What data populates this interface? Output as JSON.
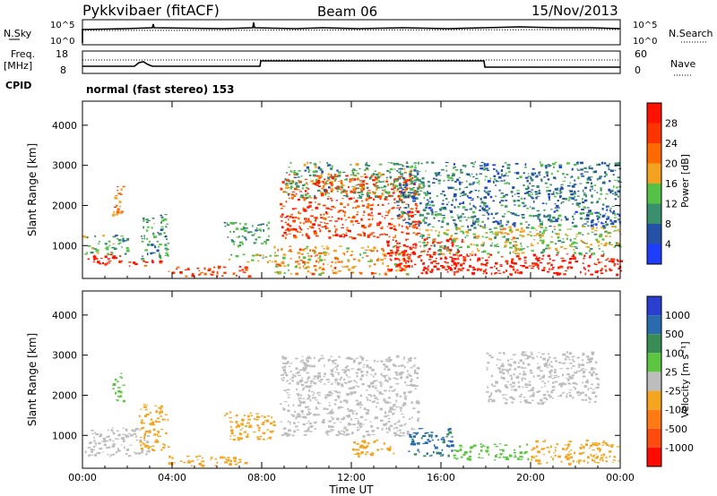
{
  "header": {
    "station": "Pykkvibaer (fitACF)",
    "beam": "Beam 06",
    "date": "15/Nov/2013"
  },
  "params": {
    "nsky_label": "N.Sky",
    "nsky_top": "10^5",
    "nsky_bottom": "10^0",
    "nsearch_label": "N.Search",
    "freq_label_1": "Freq.",
    "freq_label_2": "[MHz]",
    "freq_top": "18",
    "freq_bottom": "8",
    "nave_label": "Nave",
    "nave_top": "60",
    "nave_bottom": "0",
    "cpid_label": "CPID",
    "cpid_value": "normal (fast stereo) 153"
  },
  "axes": {
    "ylabel": "Slant Range [km]",
    "xlabel": "Time UT",
    "yticks": [
      "1000",
      "2000",
      "3000",
      "4000"
    ],
    "xticks": [
      "00:00",
      "04:00",
      "08:00",
      "12:00",
      "16:00",
      "20:00",
      "00:00"
    ]
  },
  "colorbars": {
    "power": {
      "label": "Power [dB]",
      "ticks": [
        "4",
        "8",
        "12",
        "16",
        "20",
        "24",
        "28"
      ],
      "colors": [
        "#1f3dff",
        "#2352a6",
        "#3a8f6c",
        "#55c247",
        "#f2a21e",
        "#ff6a00",
        "#ff3300",
        "#ff1100"
      ]
    },
    "velocity": {
      "label": "Velocity [m s⁻¹]",
      "ticks": [
        "1000",
        "500",
        "100",
        "25",
        "-25",
        "-100",
        "-500",
        "-1000"
      ],
      "colors": [
        "#2a3fd0",
        "#2a6bb0",
        "#3a8c55",
        "#5cc642",
        "#bdbdbd",
        "#f4a41d",
        "#ff7a12",
        "#ff4a10",
        "#ff0a00"
      ]
    }
  },
  "chart_data": [
    {
      "type": "heatmap",
      "title": "",
      "variable": "Power",
      "xlabel": "Time UT",
      "ylabel": "Slant Range [km]",
      "xlim": [
        0,
        24
      ],
      "ylim": [
        180,
        4600
      ],
      "clim": [
        0,
        30
      ],
      "units": "dB",
      "regions": [
        {
          "t0": 0.0,
          "t1": 2.0,
          "r0": 550,
          "r1": 800,
          "value": 28
        },
        {
          "t0": 0.0,
          "t1": 2.0,
          "r0": 800,
          "r1": 1300,
          "value": 12
        },
        {
          "t0": 1.3,
          "t1": 1.8,
          "r0": 1700,
          "r1": 2600,
          "value": 20
        },
        {
          "t0": 2.0,
          "t1": 3.8,
          "r0": 500,
          "r1": 650,
          "value": 26
        },
        {
          "t0": 2.6,
          "t1": 3.8,
          "r0": 650,
          "r1": 1800,
          "value": 10
        },
        {
          "t0": 3.8,
          "t1": 7.5,
          "r0": 250,
          "r1": 500,
          "value": 24
        },
        {
          "t0": 6.5,
          "t1": 8.5,
          "r0": 600,
          "r1": 800,
          "value": 14
        },
        {
          "t0": 6.3,
          "t1": 8.3,
          "r0": 1000,
          "r1": 1600,
          "value": 10
        },
        {
          "t0": 8.8,
          "t1": 15.0,
          "r0": 1200,
          "r1": 2800,
          "value": 24
        },
        {
          "t0": 9.0,
          "t1": 15.0,
          "r0": 2200,
          "r1": 3100,
          "value": 12
        },
        {
          "t0": 8.5,
          "t1": 14.5,
          "r0": 300,
          "r1": 1000,
          "value": 18
        },
        {
          "t0": 13.5,
          "t1": 17.0,
          "r0": 400,
          "r1": 1200,
          "value": 28
        },
        {
          "t0": 15.0,
          "t1": 24.0,
          "r0": 300,
          "r1": 800,
          "value": 28
        },
        {
          "t0": 15.0,
          "t1": 24.0,
          "r0": 800,
          "r1": 1500,
          "value": 14
        },
        {
          "t0": 14.0,
          "t1": 24.0,
          "r0": 1500,
          "r1": 3100,
          "value": 8
        }
      ]
    },
    {
      "type": "heatmap",
      "title": "",
      "variable": "Velocity",
      "xlabel": "Time UT",
      "ylabel": "Slant Range [km]",
      "xlim": [
        0,
        24
      ],
      "ylim": [
        180,
        4600
      ],
      "clim": [
        -1000,
        1000
      ],
      "units": "m s⁻¹",
      "regions": [
        {
          "t0": 0.0,
          "t1": 3.0,
          "r0": 500,
          "r1": 1200,
          "value": 0
        },
        {
          "t0": 1.3,
          "t1": 1.8,
          "r0": 1700,
          "r1": 2600,
          "value": 200
        },
        {
          "t0": 2.5,
          "t1": 3.8,
          "r0": 650,
          "r1": 1800,
          "value": -200
        },
        {
          "t0": 3.8,
          "t1": 7.5,
          "r0": 250,
          "r1": 500,
          "value": -200
        },
        {
          "t0": 6.3,
          "t1": 8.5,
          "r0": 900,
          "r1": 1600,
          "value": -200
        },
        {
          "t0": 8.8,
          "t1": 15.0,
          "r0": 1000,
          "r1": 3000,
          "value": 0
        },
        {
          "t0": 12.0,
          "t1": 14.0,
          "r0": 500,
          "r1": 900,
          "value": -200
        },
        {
          "t0": 14.5,
          "t1": 16.5,
          "r0": 500,
          "r1": 1200,
          "value": 600
        },
        {
          "t0": 16.5,
          "t1": 20.0,
          "r0": 400,
          "r1": 800,
          "value": 200
        },
        {
          "t0": 18.0,
          "t1": 23.0,
          "r0": 1800,
          "r1": 3100,
          "value": 0
        },
        {
          "t0": 20.0,
          "t1": 24.0,
          "r0": 300,
          "r1": 900,
          "value": -200
        }
      ]
    }
  ]
}
